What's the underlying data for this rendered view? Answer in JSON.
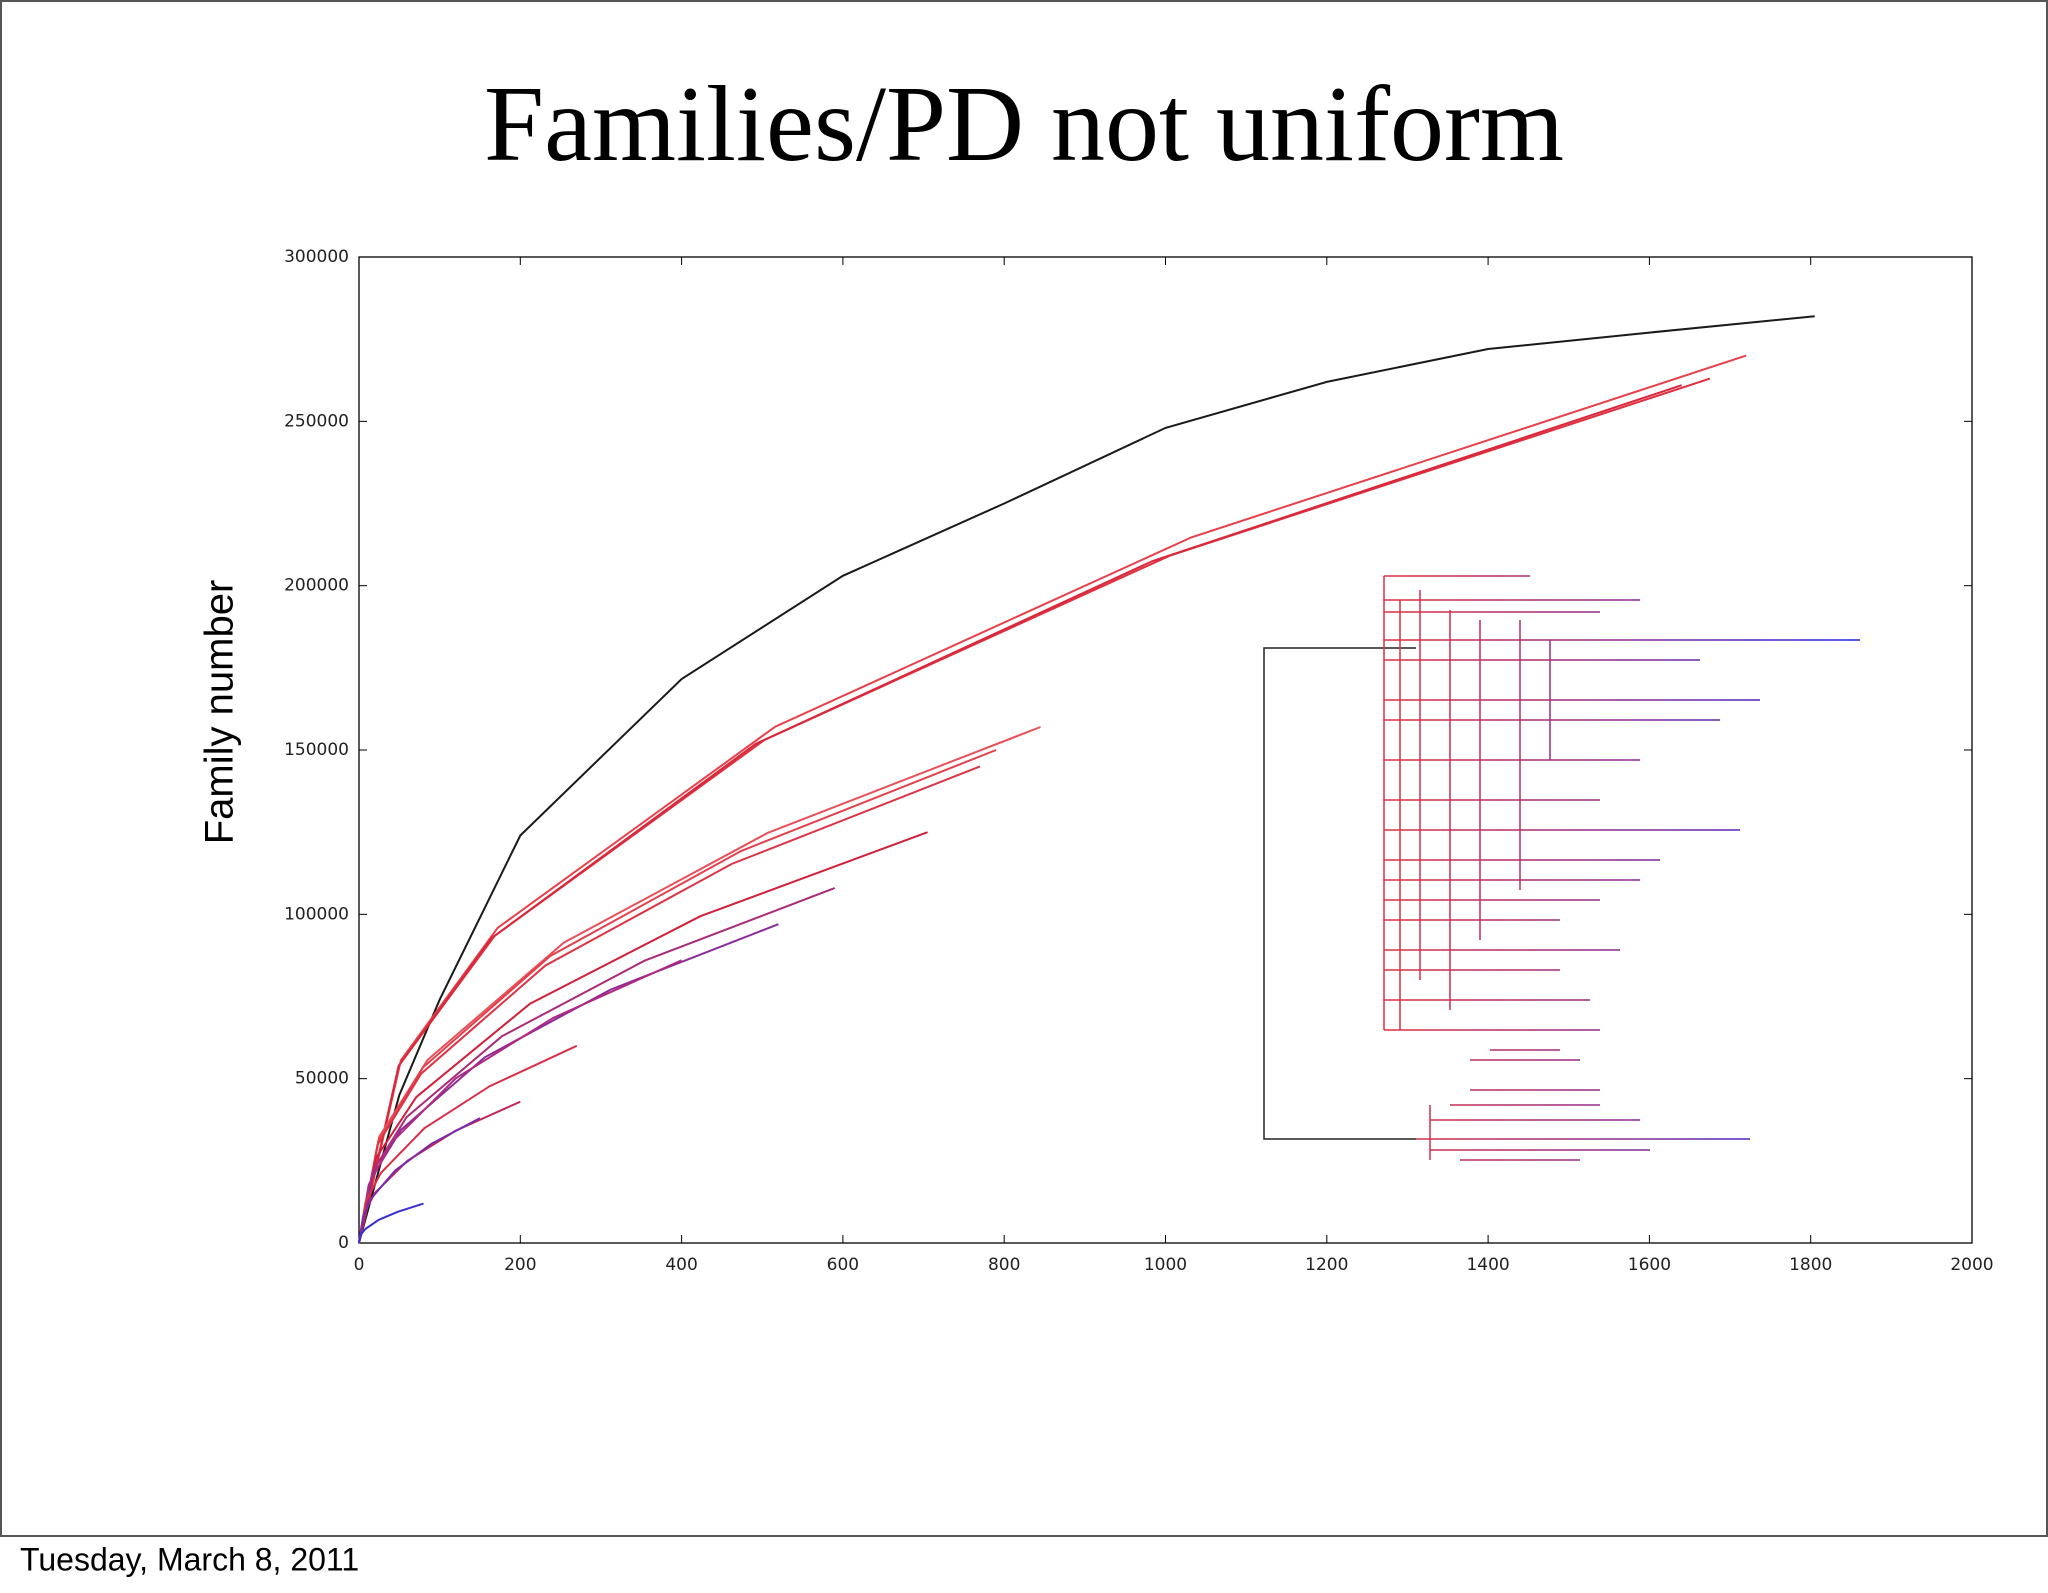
{
  "chart_data": {
    "type": "line",
    "title": "Families/PD not uniform",
    "ylabel": "Family number",
    "xlim": [
      0,
      2000
    ],
    "xticks": [
      0,
      200,
      400,
      600,
      800,
      1000,
      1200,
      1400,
      1600,
      1800,
      2000
    ],
    "ylim": [
      0,
      300000
    ],
    "yticks": [
      0,
      50000,
      100000,
      150000,
      200000,
      250000,
      300000
    ],
    "grid": false,
    "mirror_ticks": true,
    "series": [
      {
        "color": "#1a1a1a",
        "x": [
          0,
          50,
          100,
          200,
          400,
          600,
          800,
          1000,
          1200,
          1400,
          1600,
          1805
        ],
        "values": [
          0,
          45000,
          74000,
          124000,
          171600,
          203000,
          225000,
          248000,
          262000,
          272000,
          277000,
          282000
        ]
      },
      {
        "color": "#e8404a",
        "x": [
          0,
          52,
          172,
          516,
          1032,
          1720
        ],
        "values": [
          0,
          55600,
          95900,
          157100,
          214700,
          270000
        ]
      },
      {
        "color": "#e0303f",
        "x": [
          0,
          50,
          168,
          503,
          1005,
          1675
        ],
        "values": [
          0,
          54200,
          93400,
          153100,
          209100,
          263000
        ]
      },
      {
        "color": "#d8283c",
        "x": [
          0,
          49,
          164,
          492,
          984,
          1640
        ],
        "values": [
          0,
          53800,
          92700,
          151900,
          207500,
          261000
        ]
      },
      {
        "color": "#e8505a",
        "x": [
          0,
          25,
          85,
          254,
          507,
          845
        ],
        "values": [
          0,
          32300,
          55700,
          91400,
          124800,
          157000
        ]
      },
      {
        "color": "#e4404c",
        "x": [
          0,
          24,
          79,
          237,
          474,
          790
        ],
        "values": [
          0,
          30900,
          53300,
          87300,
          119300,
          150000
        ]
      },
      {
        "color": "#dc3444",
        "x": [
          0,
          23,
          77,
          231,
          462,
          770
        ],
        "values": [
          0,
          29900,
          51500,
          84400,
          115300,
          145000
        ]
      },
      {
        "color": "#d0203a",
        "x": [
          0,
          21,
          71,
          212,
          423,
          705
        ],
        "values": [
          0,
          25800,
          44400,
          72800,
          99400,
          125000
        ]
      },
      {
        "color": "#a82a78",
        "x": [
          0,
          18,
          59,
          177,
          354,
          590
        ],
        "values": [
          0,
          22200,
          38300,
          62900,
          85900,
          108000
        ]
      },
      {
        "color": "#8a2a9a",
        "x": [
          0,
          16,
          52,
          156,
          312,
          520
        ],
        "values": [
          0,
          20000,
          34400,
          56500,
          77100,
          97000
        ]
      },
      {
        "color": "#b02a80",
        "x": [
          0,
          12,
          40,
          120,
          240,
          400
        ],
        "values": [
          0,
          17700,
          30500,
          50100,
          68400,
          86000
        ]
      },
      {
        "color": "#d8304a",
        "x": [
          0,
          8,
          27,
          81,
          162,
          270
        ],
        "values": [
          0,
          12400,
          21300,
          34900,
          47700,
          60000
        ]
      },
      {
        "color": "#c02858",
        "x": [
          0,
          6,
          20,
          60,
          120,
          200
        ],
        "values": [
          0,
          8900,
          15300,
          25000,
          34200,
          43000
        ]
      },
      {
        "color": "#7a2aa8",
        "x": [
          0,
          5,
          15,
          45,
          90,
          150
        ],
        "values": [
          0,
          7800,
          13500,
          22100,
          30200,
          38000
        ]
      },
      {
        "color": "#3a2ed0",
        "x": [
          0,
          2,
          8,
          24,
          48,
          80
        ],
        "values": [
          0,
          2500,
          4300,
          7000,
          9500,
          12000
        ]
      }
    ]
  },
  "footer": "Tuesday, March 8, 2011"
}
